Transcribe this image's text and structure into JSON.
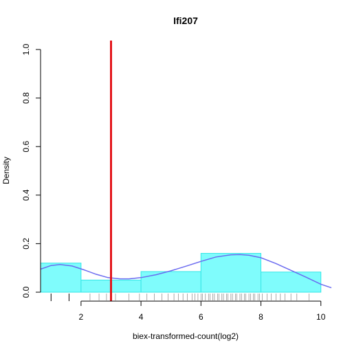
{
  "chart_data": {
    "type": "bar",
    "title": "Ifi207",
    "xlabel": "biex-transformed-count(log2)",
    "ylabel": "Density",
    "xlim": [
      0.65,
      10.35
    ],
    "ylim": [
      0,
      1.0
    ],
    "x_ticks": [
      2,
      4,
      6,
      8,
      10
    ],
    "y_ticks": [
      0.0,
      0.2,
      0.4,
      0.6,
      0.8,
      1.0
    ],
    "x_tick_labels": [
      "2",
      "4",
      "6",
      "8",
      "10"
    ],
    "y_tick_labels": [
      "0.0",
      "0.2",
      "0.4",
      "0.6",
      "0.8",
      "1.0"
    ],
    "histogram": {
      "bins": [
        [
          0.65,
          2
        ],
        [
          2,
          4
        ],
        [
          4,
          6
        ],
        [
          6,
          8
        ],
        [
          8,
          10
        ]
      ],
      "values": [
        0.12,
        0.05,
        0.085,
        0.16,
        0.083
      ],
      "fill_color": "#7ffcfc",
      "edge_color": "#33e6e6"
    },
    "density_curve": {
      "color": "#6a6af0",
      "x": [
        0.65,
        1.0,
        1.3,
        1.7,
        2.1,
        2.5,
        2.9,
        3.3,
        3.6,
        4.0,
        4.5,
        5.0,
        5.5,
        6.0,
        6.5,
        7.0,
        7.3,
        7.6,
        8.0,
        8.5,
        9.0,
        9.5,
        10.0,
        10.35
      ],
      "y": [
        0.095,
        0.11,
        0.114,
        0.108,
        0.092,
        0.074,
        0.06,
        0.055,
        0.055,
        0.06,
        0.072,
        0.088,
        0.107,
        0.127,
        0.145,
        0.154,
        0.155,
        0.152,
        0.142,
        0.118,
        0.09,
        0.062,
        0.033,
        0.018
      ]
    },
    "threshold_line": {
      "x": 3.0,
      "color": "#e3141a"
    },
    "rug": {
      "color": "#555555",
      "major": [
        1.0,
        1.6
      ],
      "x": [
        2.3,
        2.6,
        2.85,
        3.15,
        3.6,
        3.95,
        4.2,
        4.45,
        4.7,
        4.9,
        5.1,
        5.25,
        5.4,
        5.55,
        5.7,
        5.8,
        5.9,
        6.0,
        6.05,
        6.15,
        6.25,
        6.3,
        6.4,
        6.45,
        6.55,
        6.6,
        6.7,
        6.75,
        6.85,
        6.9,
        7.0,
        7.05,
        7.15,
        7.2,
        7.3,
        7.35,
        7.45,
        7.5,
        7.6,
        7.65,
        7.75,
        7.8,
        7.9,
        7.95,
        8.05,
        8.2,
        8.35,
        8.5,
        8.65,
        8.8,
        9.0,
        9.2,
        9.6
      ]
    }
  }
}
